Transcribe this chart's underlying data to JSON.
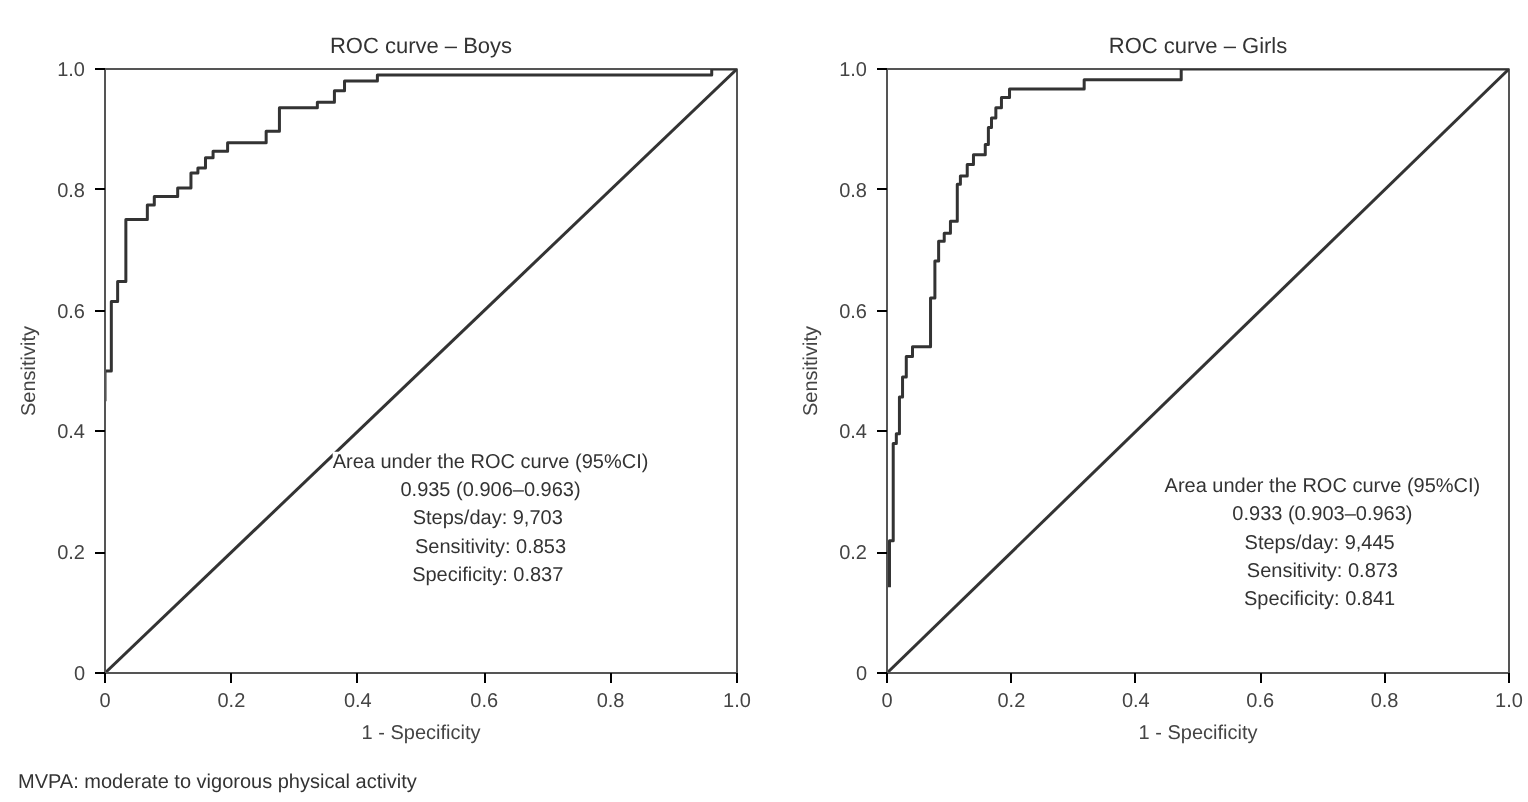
{
  "chart_data": [
    {
      "type": "line",
      "title": "ROC curve – Boys",
      "xlabel": "1 - Specificity",
      "ylabel": "Sensitivity",
      "xlim": [
        0,
        1
      ],
      "ylim": [
        0,
        1
      ],
      "xticks": [
        0,
        0.2,
        0.4,
        0.6,
        0.8,
        {
          "value": 1,
          "label": "1.0"
        }
      ],
      "yticks": [
        0,
        0.2,
        0.4,
        0.6,
        0.8,
        {
          "value": 1,
          "label": "1.0"
        }
      ],
      "grid": false,
      "marker": "none",
      "line_style": "solid",
      "series": [
        {
          "color": "#333333",
          "x": [
            0,
            0,
            0.01,
            0.01,
            0.02,
            0.02,
            0.033,
            0.033,
            0.067,
            0.067,
            0.078,
            0.078,
            0.115,
            0.115,
            0.136,
            0.136,
            0.147,
            0.147,
            0.159,
            0.159,
            0.171,
            0.171,
            0.194,
            0.194,
            0.255,
            0.255,
            0.276,
            0.276,
            0.336,
            0.336,
            0.363,
            0.363,
            0.379,
            0.379,
            0.431,
            0.431,
            0.96,
            0.96,
            1
          ],
          "values": [
            0.45,
            0.5,
            0.5,
            0.615,
            0.615,
            0.648,
            0.648,
            0.751,
            0.751,
            0.775,
            0.775,
            0.789,
            0.789,
            0.803,
            0.803,
            0.828,
            0.828,
            0.836,
            0.836,
            0.853,
            0.853,
            0.864,
            0.864,
            0.878,
            0.878,
            0.897,
            0.897,
            0.936,
            0.936,
            0.945,
            0.945,
            0.964,
            0.964,
            0.98,
            0.98,
            0.99,
            0.99,
            1,
            1
          ]
        },
        {
          "color": "#333333",
          "x": [
            0,
            1
          ],
          "values": [
            0,
            1
          ]
        }
      ],
      "annotations": [
        "Area under the ROC curve (95%CI)",
        "0.935 (0.906–0.963)",
        "Steps/day:  9,703",
        "Sensitivity: 0.853",
        "Specificity:  0.837",
        "MVPA: moderate to vigorous physical activity"
      ]
    },
    {
      "type": "line",
      "title": "ROC curve – Girls",
      "xlabel": "1 - Specificity",
      "ylabel": "Sensitivity",
      "xlim": [
        0,
        1
      ],
      "ylim": [
        0,
        1
      ],
      "xticks": [
        0,
        0.2,
        0.4,
        0.6,
        0.8,
        {
          "value": 1,
          "label": "1.0"
        }
      ],
      "yticks": [
        0,
        0.2,
        0.4,
        0.6,
        0.8,
        {
          "value": 1,
          "label": "1.0"
        }
      ],
      "grid": false,
      "marker": "none",
      "line_style": "solid",
      "series": [
        {
          "color": "#333333",
          "x": [
            0.004,
            0.004,
            0.01,
            0.01,
            0.015,
            0.015,
            0.02,
            0.02,
            0.025,
            0.025,
            0.031,
            0.031,
            0.041,
            0.041,
            0.07,
            0.07,
            0.077,
            0.077,
            0.083,
            0.083,
            0.092,
            0.092,
            0.102,
            0.102,
            0.113,
            0.113,
            0.118,
            0.118,
            0.129,
            0.129,
            0.139,
            0.139,
            0.158,
            0.158,
            0.163,
            0.163,
            0.168,
            0.168,
            0.175,
            0.175,
            0.184,
            0.184,
            0.197,
            0.197,
            0.317,
            0.317,
            0.473,
            0.473,
            1
          ],
          "values": [
            0.142,
            0.219,
            0.219,
            0.38,
            0.38,
            0.396,
            0.396,
            0.457,
            0.457,
            0.49,
            0.49,
            0.524,
            0.524,
            0.54,
            0.54,
            0.621,
            0.621,
            0.682,
            0.682,
            0.715,
            0.715,
            0.728,
            0.728,
            0.748,
            0.748,
            0.809,
            0.809,
            0.823,
            0.823,
            0.842,
            0.842,
            0.858,
            0.858,
            0.875,
            0.875,
            0.903,
            0.903,
            0.919,
            0.919,
            0.936,
            0.936,
            0.953,
            0.953,
            0.967,
            0.967,
            0.982,
            0.982,
            1,
            1
          ]
        },
        {
          "color": "#333333",
          "x": [
            0,
            1
          ],
          "values": [
            0,
            1
          ]
        }
      ],
      "annotations": [
        "Area under the ROC curve (95%CI)",
        "0.933 (0.903–0.963)",
        "Steps/day:  9,445",
        "Sensitivity: 0.873",
        "Specificity:  0.841"
      ]
    }
  ]
}
